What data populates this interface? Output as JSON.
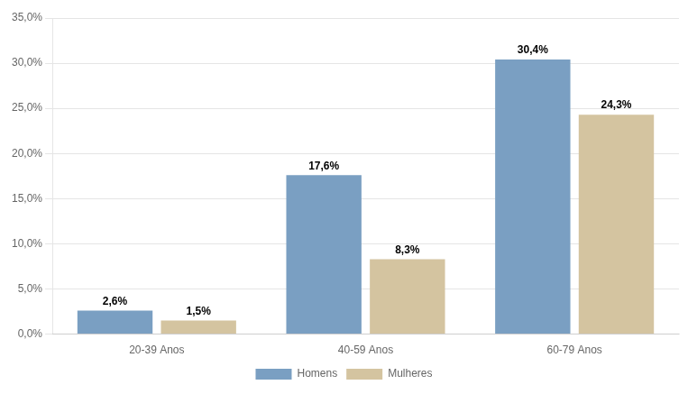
{
  "chart_data": {
    "type": "bar",
    "categories": [
      "20-39 Anos",
      "40-59 Anos",
      "60-79 Anos"
    ],
    "series": [
      {
        "name": "Homens",
        "color": "#7a9fc2",
        "values": [
          2.6,
          17.6,
          30.4
        ],
        "value_labels": [
          "2,6%",
          "17,6%",
          "30,4%"
        ]
      },
      {
        "name": "Mulheres",
        "color": "#d4c4a0",
        "values": [
          1.5,
          8.3,
          24.3
        ],
        "value_labels": [
          "1,5%",
          "8,3%",
          "24,3%"
        ]
      }
    ],
    "ylim": [
      0,
      35
    ],
    "yticks": [
      {
        "value": 0,
        "label": "0,0%"
      },
      {
        "value": 5,
        "label": "5,0%"
      },
      {
        "value": 10,
        "label": "10,0%"
      },
      {
        "value": 15,
        "label": "15,0%"
      },
      {
        "value": 20,
        "label": "20,0%"
      },
      {
        "value": 25,
        "label": "25,0%"
      },
      {
        "value": 30,
        "label": "30,0%"
      },
      {
        "value": 35,
        "label": "35,0%"
      }
    ],
    "grid": true,
    "legend": "bottom",
    "data_labels": true
  }
}
